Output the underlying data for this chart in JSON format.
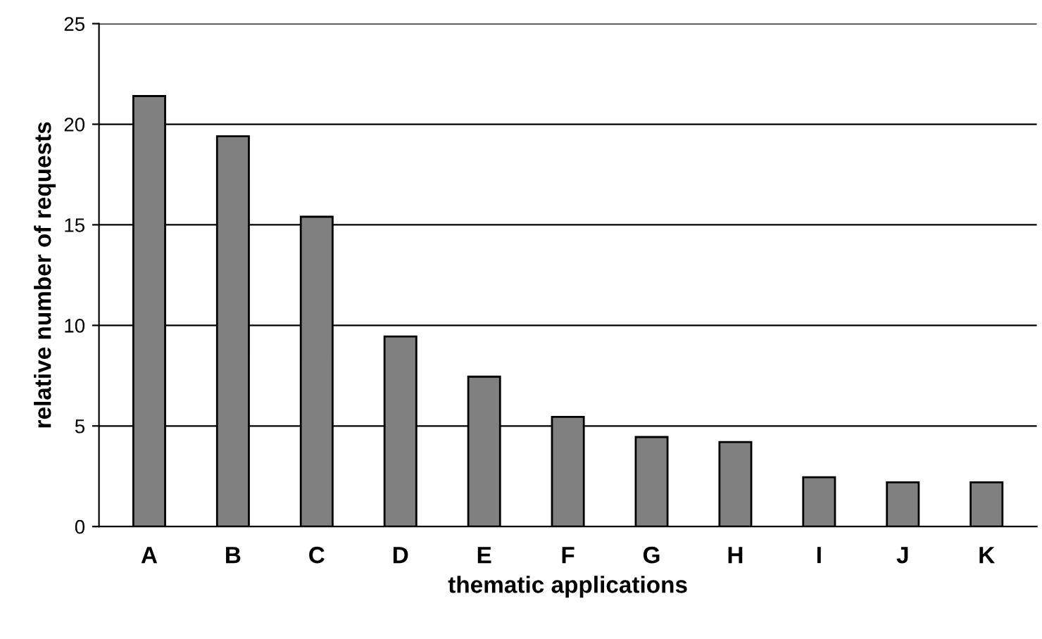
{
  "chart_data": {
    "type": "bar",
    "xlabel": "thematic applications",
    "ylabel": "relative number of requests",
    "categories": [
      "A",
      "B",
      "C",
      "D",
      "E",
      "F",
      "G",
      "H",
      "I",
      "J",
      "K"
    ],
    "values": [
      21.4,
      19.4,
      15.4,
      9.45,
      7.45,
      5.45,
      4.45,
      4.2,
      2.45,
      2.2,
      2.2
    ],
    "color": "#808080",
    "ylim": [
      0,
      25
    ],
    "yticks": [
      0,
      5,
      10,
      15,
      20,
      25
    ],
    "grid": "y",
    "legend": false
  }
}
